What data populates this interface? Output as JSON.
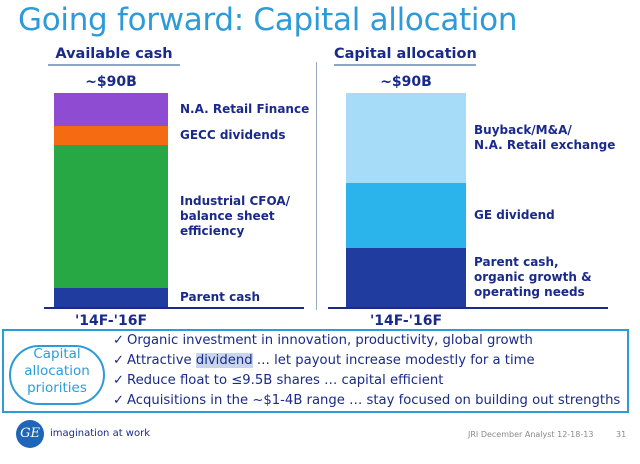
{
  "slide": {
    "title": "Going forward: Capital allocation",
    "footer_tagline": "imagination at work",
    "footer_logo": "GE",
    "footer_note": "JRI December Analyst 12-18-13",
    "page_number": "31"
  },
  "chart_data": [
    {
      "type": "bar",
      "stacked": true,
      "title": "Available cash",
      "total_label": "~$90B",
      "categories": [
        "'14F-'16F"
      ],
      "series": [
        {
          "name": "Parent cash",
          "values": [
            8
          ],
          "color": "#1f3c9e"
        },
        {
          "name": "Industrial CFOA/\nbalance sheet\nefficiency",
          "values": [
            60
          ],
          "color": "#27a844"
        },
        {
          "name": "GECC dividends",
          "values": [
            8
          ],
          "color": "#f46b12"
        },
        {
          "name": "N.A. Retail Finance",
          "values": [
            14
          ],
          "color": "#8e4cd2"
        }
      ]
    },
    {
      "type": "bar",
      "stacked": true,
      "title": "Capital allocation",
      "total_label": "~$90B",
      "categories": [
        "'14F-'16F"
      ],
      "series": [
        {
          "name": "Parent cash,\norganic growth &\noperating needs",
          "values": [
            25
          ],
          "color": "#1f3c9e"
        },
        {
          "name": "GE dividend",
          "values": [
            27
          ],
          "color": "#2bb4ec"
        },
        {
          "name": "Buyback/M&A/\nN.A. Retail exchange",
          "values": [
            38
          ],
          "color": "#a6dcf8"
        }
      ]
    }
  ],
  "priorities": {
    "label": "Capital\nallocation\npriorities",
    "check_symbol": "✓",
    "items": [
      {
        "text": "Organic investment in innovation, productivity, global growth"
      },
      {
        "pre": "Attractive ",
        "highlight": "dividend",
        "post": " … let payout increase modestly for a time"
      },
      {
        "text": "Reduce float to ≤9.5B shares … capital efficient"
      },
      {
        "text": "Acquisitions in the ~$1-4B range … stay focused on building out strengths"
      }
    ]
  }
}
